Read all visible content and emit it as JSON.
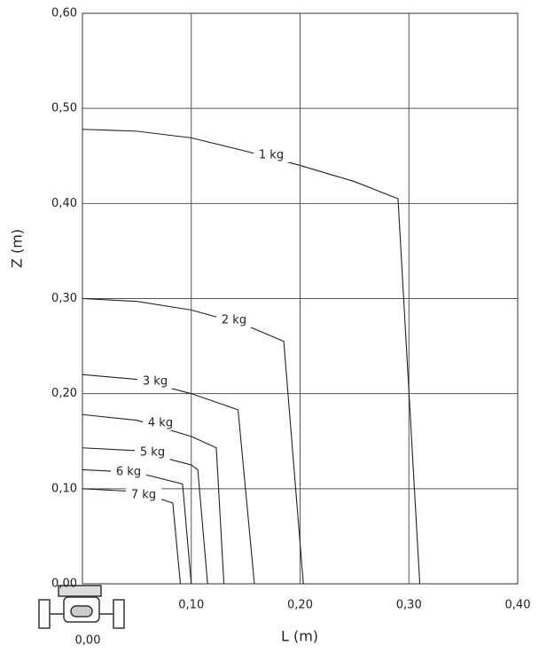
{
  "chart_data": {
    "type": "line",
    "xlabel": "L (m)",
    "ylabel": "Z (m)",
    "xlim": [
      0,
      0.4
    ],
    "ylim": [
      0,
      0.6
    ],
    "xticks": [
      {
        "value": 0,
        "label": "0,00"
      },
      {
        "value": 0.1,
        "label": "0,10"
      },
      {
        "value": 0.2,
        "label": "0,20"
      },
      {
        "value": 0.3,
        "label": "0,30"
      },
      {
        "value": 0.4,
        "label": "0,40"
      }
    ],
    "yticks": [
      {
        "value": 0,
        "label": "0,00"
      },
      {
        "value": 0.1,
        "label": "0,10"
      },
      {
        "value": 0.2,
        "label": "0,20"
      },
      {
        "value": 0.3,
        "label": "0,30"
      },
      {
        "value": 0.4,
        "label": "0,40"
      },
      {
        "value": 0.5,
        "label": "0,50"
      },
      {
        "value": 0.6,
        "label": "0,60"
      }
    ],
    "grid": true,
    "series": [
      {
        "name": "1 kg",
        "color": "#222222",
        "x": [
          0,
          0.05,
          0.1,
          0.15,
          0.2,
          0.25,
          0.29,
          0.31
        ],
        "values": [
          0.478,
          0.476,
          0.469,
          0.455,
          0.44,
          0.423,
          0.405,
          0
        ]
      },
      {
        "name": "2 kg",
        "color": "#222222",
        "x": [
          0,
          0.05,
          0.1,
          0.15,
          0.185,
          0.203
        ],
        "values": [
          0.3,
          0.297,
          0.288,
          0.272,
          0.255,
          0
        ]
      },
      {
        "name": "3 kg",
        "color": "#222222",
        "x": [
          0,
          0.05,
          0.1,
          0.143,
          0.158
        ],
        "values": [
          0.22,
          0.215,
          0.2,
          0.183,
          0
        ]
      },
      {
        "name": "4 kg",
        "color": "#222222",
        "x": [
          0,
          0.05,
          0.1,
          0.123,
          0.13
        ],
        "values": [
          0.178,
          0.172,
          0.155,
          0.143,
          0
        ]
      },
      {
        "name": "5 kg",
        "color": "#222222",
        "x": [
          0,
          0.05,
          0.1,
          0.106,
          0.115
        ],
        "values": [
          0.143,
          0.14,
          0.125,
          0.12,
          0
        ]
      },
      {
        "name": "6 kg",
        "color": "#222222",
        "x": [
          0,
          0.05,
          0.092,
          0.1
        ],
        "values": [
          0.12,
          0.117,
          0.105,
          0
        ]
      },
      {
        "name": "7 kg",
        "color": "#222222",
        "x": [
          0,
          0.05,
          0.083,
          0.09
        ],
        "values": [
          0.1,
          0.097,
          0.085,
          0
        ]
      }
    ]
  }
}
